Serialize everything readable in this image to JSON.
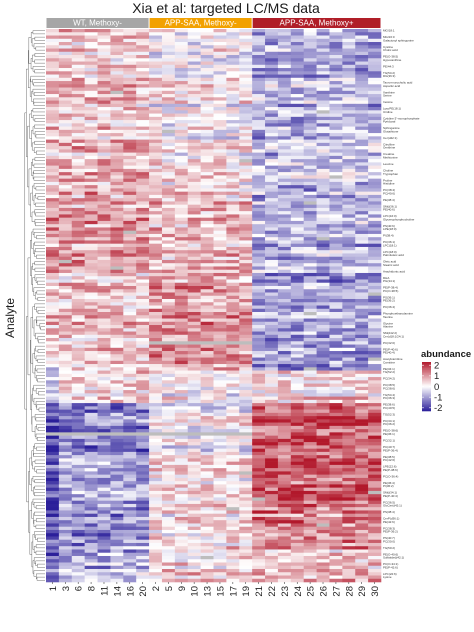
{
  "chart_data": {
    "type": "heatmap",
    "title": "Xia et al: targeted LC/MS data",
    "ylabel": "Analyte",
    "xlabel": "",
    "columns": [
      "1",
      "3",
      "6",
      "8",
      "11",
      "14",
      "16",
      "20",
      "2",
      "5",
      "9",
      "10",
      "13",
      "15",
      "17",
      "19",
      "21",
      "22",
      "23",
      "24",
      "25",
      "26",
      "27",
      "28",
      "29",
      "30"
    ],
    "groups": [
      {
        "name": "WT, Methoxy-",
        "count": 8,
        "color": "#a6a6a6"
      },
      {
        "name": "APP-SAA, Methoxy-",
        "count": 8,
        "color": "#f2a100"
      },
      {
        "name": "APP-SAA, Methoxy+",
        "count": 10,
        "color": "#b01e28"
      }
    ],
    "legend": {
      "title": "abundance",
      "ticks": [
        2,
        1,
        0,
        -1,
        -2
      ],
      "range": [
        -2.3,
        2.3
      ],
      "colors": {
        "high": "#b2182b",
        "mid": "#ffffff",
        "low": "#2b1f9a"
      },
      "placement": "right"
    },
    "row_count": 170,
    "row_labels_visible": [
      "MG/18:1",
      "MG/16:0",
      "Galactosyl sphingosine",
      "Cystine",
      "Cholic acid",
      "PE(O-38:5)",
      "Hypoxanthine",
      "PE/44:3",
      "TG(54:2)",
      "DG(36:3)",
      "Tauro-murocholic acid",
      "Aspartic acid",
      "Xanthine",
      "Serine",
      "Inosine",
      "LysoPE(18:1)",
      "Uridine",
      "Cytidine 5'-monophosphate",
      "Pyridoxal",
      "Sphinganine",
      "Glutathione",
      "Cer(d42:1)",
      "Citrulline",
      "Ornithine",
      "Creatine",
      "Methionine",
      "Leucine",
      "Choline",
      "Tryptophan",
      "Proline",
      "Histidine",
      "PC(38:4)",
      "PC(40:6)",
      "PE(38:4)",
      "SM(d36:1)",
      "PE(40:6)",
      "LPC(16:0)",
      "Glycerophosphocholine",
      "PS(40:6)",
      "LPE(18:0)",
      "PI(38:4)",
      "PC(36:1)",
      "LPC(18:1)",
      "LPC(18:0)",
      "Palmitoleic acid",
      "Oleic acid",
      "Stearic acid",
      "Arachidonic acid",
      "DHA",
      "PG(34:1)",
      "PE(P-38:4)",
      "PC(O-38:5)",
      "PS(36:1)",
      "PE(36:2)",
      "PC(36:4)",
      "Phosphoethanolamine",
      "Taurine",
      "Glycine",
      "Alanine",
      "SM(d42:2)",
      "Cer(d18:1/24:1)",
      "PC(32:0)",
      "PE(P-40:6)",
      "PE(40:4)",
      "Acetylcarnitine",
      "Carnitine",
      "PE(34:1)",
      "TG(52:2)",
      "PC(34:2)",
      "PC(38:5)",
      "PC(38:6)",
      "TG(54:4)",
      "PC(36:3)",
      "PE(38:6)",
      "PC(40:5)",
      "TG(52:3)",
      "PC(34:1)",
      "PC(36:2)",
      "PE(O-38:6)",
      "PE(36:1)",
      "PC(32:1)",
      "PC(40:7)",
      "PE(P-36:4)",
      "PE(38:5)",
      "PC(42:6)",
      "LPE(22:6)",
      "PE(P-38:6)",
      "PC(O-36:4)",
      "PE(36:4)",
      "PI(36:2)",
      "SM(d34:1)",
      "PE(P-40:4)",
      "PC(36:5)",
      "GlcCer(d42:1)",
      "PS(38:4)",
      "CerP(d36:1)",
      "PE(42:6)",
      "PC(38:3)",
      "PE(P-36:2)",
      "PS(40:7)",
      "PC(30:0)",
      "TG(50:2)",
      "PE(O-40:6)",
      "Sulfatide(d42:1)",
      "PC(O-34:1)",
      "PE(P-42:6)",
      "LPC(22:6)",
      "Lysine"
    ]
  }
}
